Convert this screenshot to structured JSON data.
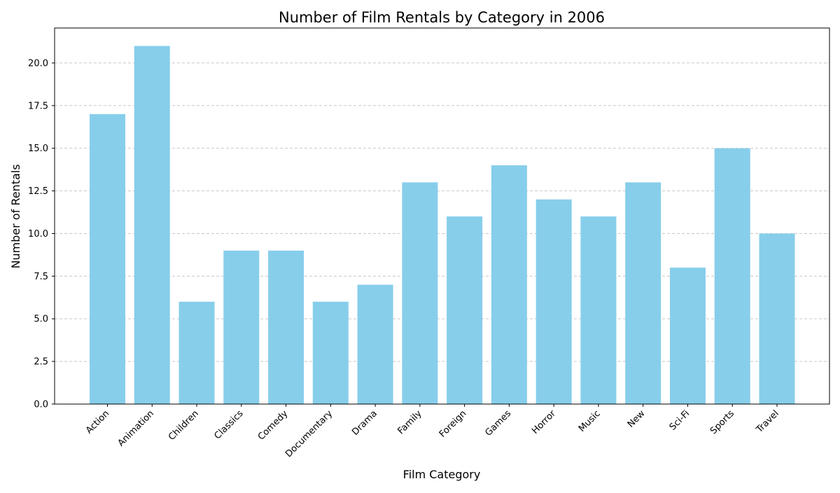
{
  "chart_data": {
    "type": "bar",
    "title": "Number of Film Rentals by Category in 2006",
    "xlabel": "Film Category",
    "ylabel": "Number of Rentals",
    "categories": [
      "Action",
      "Animation",
      "Children",
      "Classics",
      "Comedy",
      "Documentary",
      "Drama",
      "Family",
      "Foreign",
      "Games",
      "Horror",
      "Music",
      "New",
      "Sci-Fi",
      "Sports",
      "Travel"
    ],
    "values": [
      17,
      21,
      6,
      9,
      9,
      6,
      7,
      13,
      11,
      14,
      12,
      11,
      13,
      8,
      15,
      10
    ],
    "ylim": [
      0,
      22.05
    ],
    "yticks": [
      "0.0",
      "2.5",
      "5.0",
      "7.5",
      "10.0",
      "12.5",
      "15.0",
      "17.5",
      "20.0"
    ],
    "grid": "y-dashed",
    "legend": "none",
    "colors": {
      "bar": "#87ceeb",
      "grid": "#c8c8c8",
      "axis": "#000000"
    }
  }
}
